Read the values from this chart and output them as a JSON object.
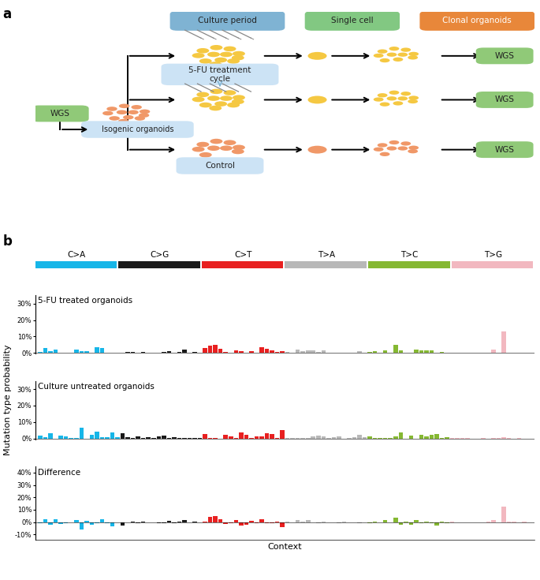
{
  "panel_a": {
    "legend_boxes": [
      {
        "label": "Culture period",
        "color": "#7fb3d3"
      },
      {
        "label": "Single cell",
        "color": "#82c882"
      },
      {
        "label": "Clonal organoids",
        "color": "#e8873a"
      }
    ],
    "wgs_color": "#90c978",
    "salmon_organoid_color": "#f09868",
    "yellow_organoid_color": "#f5c842",
    "treatment_box_color": "#cce3f5",
    "control_box_color": "#cce3f5"
  },
  "panel_b": {
    "mutation_types": [
      "C>A",
      "C>G",
      "C>T",
      "T>A",
      "T>C",
      "T>G"
    ],
    "colors": [
      "#17b6e8",
      "#1a1a1a",
      "#e82020",
      "#b8b8b8",
      "#85b832",
      "#f2b8c0"
    ],
    "subplot_titles": [
      "5-FU treated organoids",
      "Culture untreated organoids",
      "Difference"
    ],
    "ylabel": "Mutation type probability",
    "xlabel": "Context"
  }
}
